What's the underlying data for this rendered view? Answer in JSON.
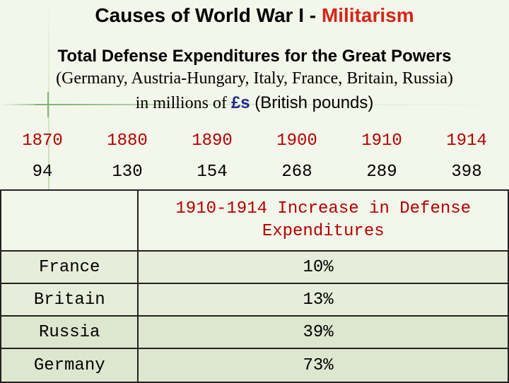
{
  "title": {
    "main": "Causes of World War I - ",
    "highlight": "Militarism"
  },
  "subtitle": {
    "line1": "Total Defense Expenditures for the Great Powers",
    "line2": "(Germany, Austria-Hungary, Italy, France, Britain, Russia)",
    "line3_prefix": "in millions of ",
    "line3_currency": "£s",
    "line3_suffix": " (British pounds)"
  },
  "expenditures": {
    "years": [
      "1870",
      "1880",
      "1890",
      "1900",
      "1910",
      "1914"
    ],
    "values": [
      "94",
      "130",
      "154",
      "268",
      "289",
      "398"
    ]
  },
  "increase_table": {
    "header": "1910-1914 Increase in Defense Expenditures",
    "rows": [
      {
        "country": "France",
        "increase": "10%"
      },
      {
        "country": "Britain",
        "increase": "13%"
      },
      {
        "country": "Russia",
        "increase": "39%"
      },
      {
        "country": "Germany",
        "increase": "73%"
      }
    ]
  }
}
